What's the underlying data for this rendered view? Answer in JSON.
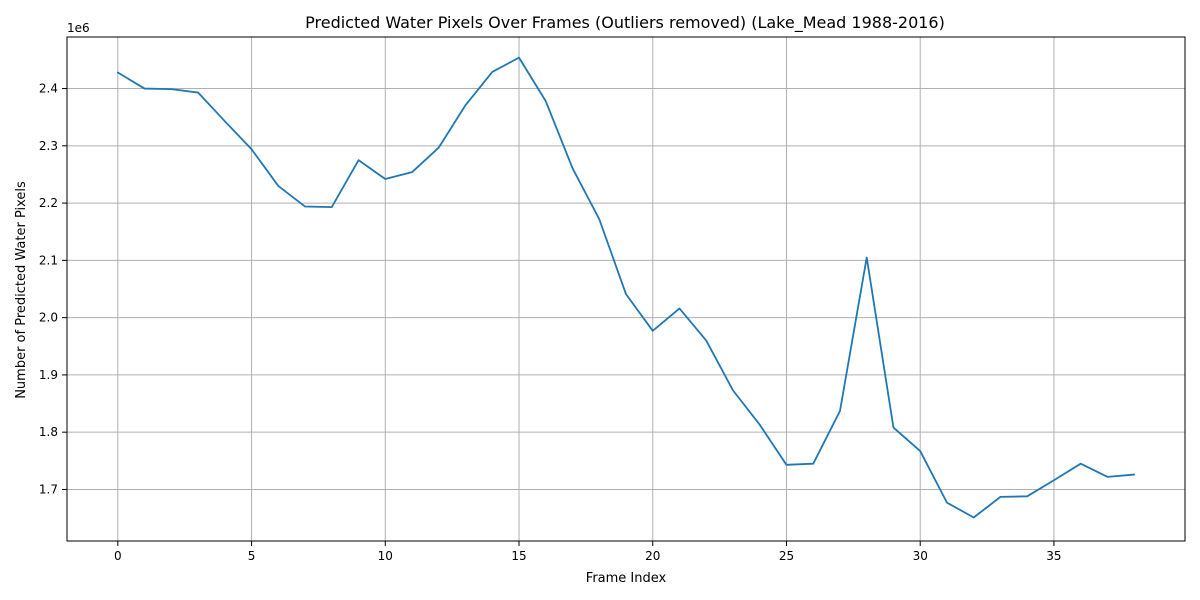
{
  "chart_data": {
    "type": "line",
    "title": "Predicted Water Pixels Over Frames (Outliers removed) (Lake_Mead 1988-2016)",
    "xlabel": "Frame Index",
    "ylabel": "Number of Predicted Water Pixels",
    "y_offset_label": "1e6",
    "y_scale": 1000000,
    "xlim": [
      -1.9,
      39.9
    ],
    "ylim": [
      1.61,
      2.49
    ],
    "x_ticks": [
      0,
      5,
      10,
      15,
      20,
      25,
      30,
      35
    ],
    "y_ticks": [
      1.7,
      1.8,
      1.9,
      2.0,
      2.1,
      2.2,
      2.3,
      2.4
    ],
    "grid": true,
    "series": [
      {
        "color": "#1f77b4",
        "x": [
          0,
          1,
          2,
          3,
          4,
          5,
          6,
          7,
          8,
          9,
          10,
          11,
          12,
          13,
          14,
          15,
          16,
          17,
          18,
          19,
          20,
          21,
          22,
          23,
          24,
          25,
          26,
          27,
          28,
          29,
          30,
          31,
          32,
          33,
          34,
          35,
          36,
          37,
          38
        ],
        "y": [
          2428000,
          2400000,
          2399000,
          2393000,
          2343000,
          2294000,
          2230000,
          2194000,
          2193000,
          2275000,
          2242000,
          2254000,
          2297000,
          2371000,
          2429000,
          2454000,
          2378000,
          2261000,
          2172000,
          2041000,
          1977000,
          2016000,
          1960000,
          1873000,
          1813000,
          1743000,
          1745000,
          1837000,
          2105000,
          1808000,
          1767000,
          1677000,
          1651000,
          1687000,
          1688000,
          1716000,
          1745000,
          1722000,
          1726000
        ]
      }
    ]
  }
}
